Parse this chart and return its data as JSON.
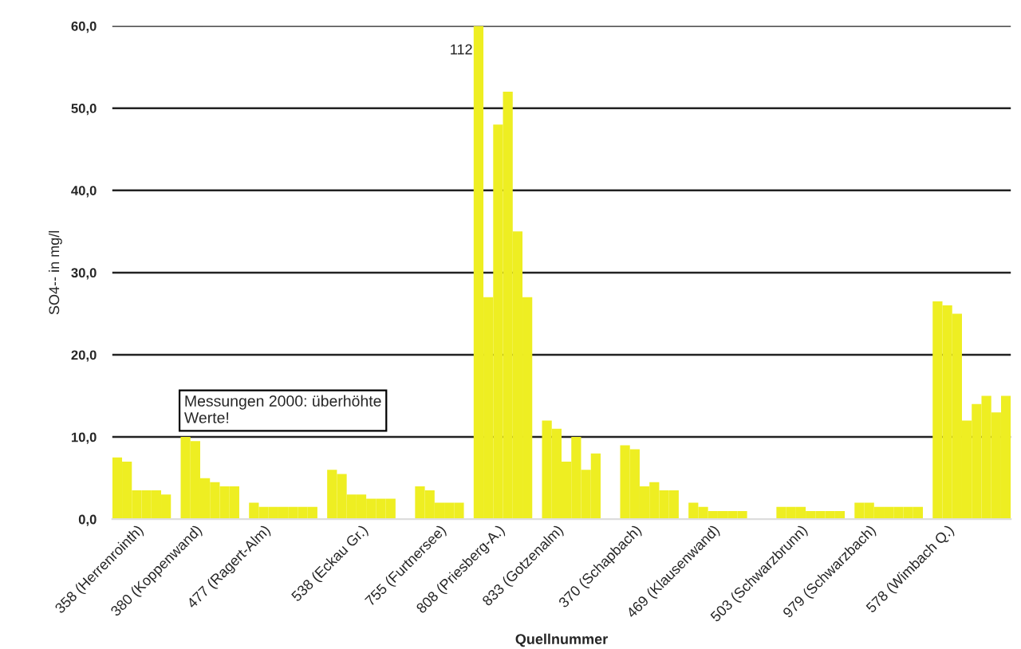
{
  "chart_data": {
    "type": "bar",
    "xlabel": "Quellnummer",
    "ylabel": "SO4-- in mg/l",
    "color": "#eeee22",
    "categories": [
      null,
      null,
      "358 (Herrenrointh)",
      null,
      null,
      null,
      null,
      null,
      "380 (Koppenwand)",
      null,
      null,
      null,
      null,
      null,
      null,
      "477 (Ragert-Alm)",
      null,
      null,
      null,
      null,
      null,
      null,
      null,
      null,
      null,
      "538 (Eckau Gr.)",
      null,
      null,
      null,
      null,
      null,
      null,
      null,
      "755 (Furtnersee)",
      null,
      null,
      null,
      null,
      null,
      "808 (Priesberg-A.)",
      null,
      null,
      null,
      null,
      null,
      "833 (Gotzenalm)",
      null,
      null,
      null,
      null,
      null,
      null,
      null,
      "370 (Schapbach)",
      null,
      null,
      null,
      null,
      null,
      null,
      null,
      "469 (Klausenwand)",
      null,
      null,
      null,
      null,
      null,
      null,
      null,
      null,
      "503 (Schwarzbrunn)",
      null,
      null,
      null,
      null,
      null,
      null,
      "979 (Schwarzbach)",
      null,
      null,
      null,
      null,
      null,
      null,
      null,
      "578 (Wimbach Q.)",
      null,
      null,
      null,
      null,
      null,
      null
    ],
    "values": [
      7.5,
      7.0,
      3.5,
      3.5,
      3.5,
      3.0,
      null,
      10.0,
      9.5,
      5.0,
      4.5,
      4.0,
      4.0,
      null,
      2.0,
      1.5,
      1.5,
      1.5,
      1.5,
      1.5,
      1.5,
      null,
      6.0,
      5.5,
      3.0,
      3.0,
      2.5,
      2.5,
      2.5,
      null,
      null,
      4.0,
      3.5,
      2.0,
      2.0,
      2.0,
      null,
      60.0,
      27.0,
      48.0,
      52.0,
      35.0,
      27.0,
      null,
      12.0,
      11.0,
      7.0,
      10.0,
      6.0,
      8.0,
      null,
      null,
      9.0,
      8.5,
      4.0,
      4.5,
      3.5,
      3.5,
      null,
      2.0,
      1.5,
      1.0,
      1.0,
      1.0,
      1.0,
      null,
      null,
      null,
      1.5,
      1.5,
      1.5,
      1.0,
      1.0,
      1.0,
      1.0,
      null,
      2.0,
      2.0,
      1.5,
      1.5,
      1.5,
      1.5,
      1.5,
      null,
      26.5,
      26.0,
      25.0,
      12.0,
      14.0,
      15.0,
      13.0,
      15.0
    ],
    "ylim": [
      0,
      60
    ],
    "yticks": [
      {
        "value": 0,
        "label": "0,0"
      },
      {
        "value": 10,
        "label": "10,0"
      },
      {
        "value": 20,
        "label": "20,0"
      },
      {
        "value": 30,
        "label": "30,0"
      },
      {
        "value": 40,
        "label": "40,0"
      },
      {
        "value": 50,
        "label": "50,0"
      },
      {
        "value": 60,
        "label": "60,0"
      }
    ],
    "grid": "y",
    "legend": false,
    "annotations": [
      "Messungen 2000: überhöhte\nWerte!",
      "112"
    ]
  }
}
